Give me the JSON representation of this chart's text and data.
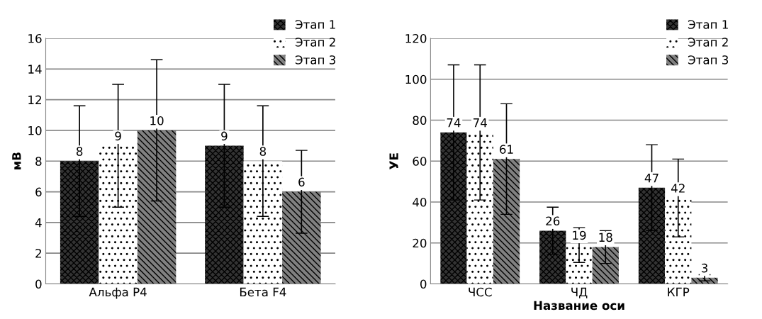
{
  "chart_data": [
    {
      "type": "bar",
      "ylabel": "мВ",
      "categories": [
        "Альфа P4",
        "Бета F4"
      ],
      "ylim": [
        0,
        16
      ],
      "yticks": [
        0,
        2,
        4,
        6,
        8,
        10,
        12,
        14,
        16
      ],
      "grid": "y",
      "legend": "top right",
      "data_labels": true,
      "series": [
        {
          "name": "Этап 1",
          "color": "#333333",
          "values": [
            8,
            9
          ],
          "errors": [
            3.6,
            4
          ]
        },
        {
          "name": "Этап 2",
          "color": "#ffffff",
          "values": [
            9,
            8
          ],
          "errors": [
            4,
            3.6
          ]
        },
        {
          "name": "Этап 3",
          "color": "#808080",
          "values": [
            10,
            6
          ],
          "errors": [
            4.6,
            2.7
          ]
        }
      ]
    },
    {
      "type": "bar",
      "ylabel": "УЕ",
      "xlabel": "Название оси",
      "categories": [
        "ЧСС",
        "ЧД",
        "КГР"
      ],
      "ylim": [
        0,
        120
      ],
      "yticks": [
        0,
        20,
        40,
        60,
        80,
        100,
        120
      ],
      "grid": "y",
      "legend": "top right",
      "data_labels": true,
      "series": [
        {
          "name": "Этап 1",
          "color": "#333333",
          "values": [
            74,
            26,
            47
          ],
          "errors": [
            33,
            11.5,
            21
          ]
        },
        {
          "name": "Этап 2",
          "color": "#ffffff",
          "values": [
            74,
            19,
            42
          ],
          "errors": [
            33,
            8.5,
            19
          ]
        },
        {
          "name": "Этап 3",
          "color": "#808080",
          "values": [
            61,
            18,
            3
          ],
          "errors": [
            27,
            8,
            1.5
          ]
        }
      ]
    }
  ]
}
